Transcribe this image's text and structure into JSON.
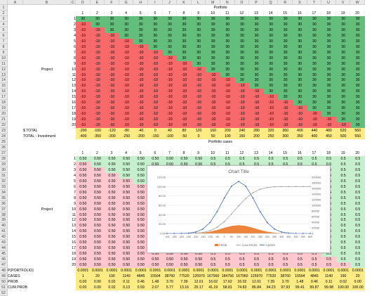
{
  "columns": [
    "A",
    "B",
    "C",
    "D",
    "E",
    "F",
    "G",
    "H",
    "I",
    "J",
    "K",
    "L",
    "M",
    "N",
    "O",
    "P",
    "Q",
    "R",
    "S",
    "T",
    "U",
    "V",
    "W"
  ],
  "section1": {
    "title": "Portfolio",
    "col_numbers": [
      "1",
      "2",
      "3",
      "4",
      "5",
      "6",
      "7",
      "8",
      "9",
      "10",
      "11",
      "12",
      "13",
      "14",
      "15",
      "16",
      "17",
      "18",
      "19",
      "20",
      "21"
    ],
    "row_label": "Project",
    "project_numbers": [
      "1",
      "2",
      "3",
      "4",
      "5",
      "6",
      "7",
      "8",
      "9",
      "10",
      "11",
      "12",
      "13",
      "14",
      "15",
      "16",
      "17",
      "18",
      "19",
      "20"
    ],
    "positive_value": "30",
    "negative_value": "-10",
    "total_label": "$ TOTAL",
    "total_values": [
      "-200",
      "-160",
      "-120",
      "-80",
      "-40",
      "0",
      "40",
      "80",
      "120",
      "160",
      "200",
      "240",
      "280",
      "320",
      "360",
      "400",
      "440",
      "480",
      "520",
      "560",
      "600"
    ],
    "investment_label": "TOTAL - Investment",
    "investment_values": [
      "-400",
      "-350",
      "-300",
      "-250",
      "-200",
      "-150",
      "-100",
      "-50",
      "0",
      "50",
      "100",
      "150",
      "200",
      "250",
      "300",
      "350",
      "400",
      "450",
      "500",
      "550",
      "600"
    ]
  },
  "section2": {
    "title": "Portfolio cases",
    "col_numbers": [
      "1",
      "2",
      "3",
      "4",
      "5",
      "6",
      "7",
      "8",
      "9",
      "10",
      "11",
      "12",
      "13",
      "14",
      "15",
      "16",
      "17",
      "18",
      "19",
      "20",
      "21"
    ],
    "row_label": "Project",
    "project_numbers": [
      "1",
      "2",
      "3",
      "4",
      "5",
      "6",
      "7",
      "8",
      "9",
      "10",
      "11",
      "12",
      "13",
      "14",
      "15",
      "16",
      "17",
      "18",
      "19",
      "20"
    ],
    "prob_value": "0.50",
    "prob_value_short": "0.5",
    "summary_labels": [
      "P(PORTFOLIO)",
      "CASES",
      "PROB",
      "CUM PROB"
    ],
    "pportfolio": [
      "0.0001",
      "0.0001",
      "0.0001",
      "0.0001",
      "0.0001",
      "0.0001",
      "0.0001",
      "0.0001",
      "0.0001",
      "0.0001",
      "0.0001",
      "0.0001",
      "0.0001",
      "0.0001",
      "0.0001",
      "0.0001",
      "0.0001",
      "0.0001",
      "0.0001",
      "0.0001",
      "0.0001"
    ],
    "cases": [
      "1",
      "20",
      "190",
      "1140",
      "4845",
      "15504",
      "38760",
      "77520",
      "125970",
      "167960",
      "184756",
      "167960",
      "125970",
      "77520",
      "38760",
      "15504",
      "4845",
      "1140",
      "190",
      "20",
      "1"
    ],
    "prob": [
      "0.00",
      "0.00",
      "0.02",
      "0.11",
      "0.46",
      "1.48",
      "3.70",
      "7.39",
      "12.01",
      "16.02",
      "17.62",
      "16.02",
      "12.01",
      "7.39",
      "3.70",
      "1.48",
      "0.46",
      "0.11",
      "0.02",
      "0.00",
      "0.00"
    ],
    "cum_prob": [
      "0.00",
      "0.00",
      "0.02",
      "0.13",
      "0.59",
      "2.07",
      "5.77",
      "13.16",
      "25.17",
      "41.19",
      "58.81",
      "74.83",
      "86.84",
      "94.23",
      "97.93",
      "99.41",
      "99.87",
      "99.98",
      "100.00",
      "100.00",
      "100.00"
    ]
  },
  "chart": {
    "title": "Chart Title",
    "left_axis_ticks": [
      "0.00",
      "20.00",
      "40.00",
      "60.00",
      "80.00",
      "100.00",
      "120.00"
    ],
    "right_axis_ticks": [
      "0",
      "20000",
      "40000",
      "60000",
      "80000",
      "100000",
      "120000",
      "140000",
      "160000",
      "180000",
      "200000"
    ],
    "x_ticks": [
      "-400",
      "-350",
      "-300",
      "-250",
      "-200",
      "-150",
      "-100",
      "-50",
      "0",
      "50",
      "100",
      "150",
      "200",
      "250",
      "300",
      "350",
      "400",
      "450",
      "500",
      "550",
      "600"
    ],
    "legend": [
      "PROB",
      "CUM PROB",
      "CASES"
    ],
    "colors": {
      "prob": "#ed7d31",
      "cum_prob": "#a5a5a5",
      "cases": "#4472c4",
      "green": "#63be7b",
      "red": "#f8696b",
      "yellow": "#ffeb84"
    }
  }
}
